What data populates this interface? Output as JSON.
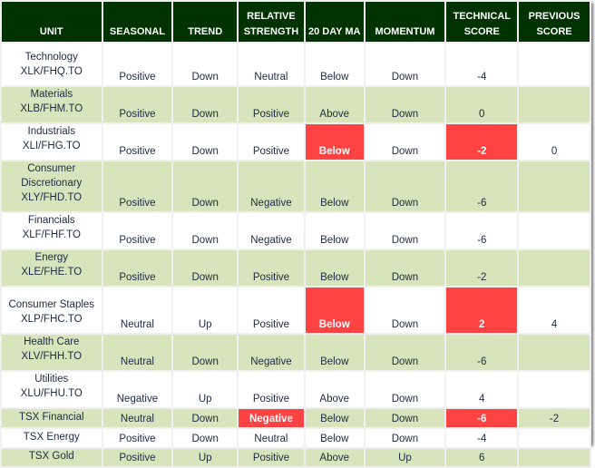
{
  "colors": {
    "header": "#003300",
    "band": "#d8e4bc",
    "alert": "#ff4343"
  },
  "headers": [
    "UNIT",
    "SEASONAL",
    "TREND",
    "RELATIVE STRENGTH",
    "20 DAY MA",
    "MOMENTUM",
    "TECHNICAL SCORE",
    "PREVIOUS SCORE"
  ],
  "rows": [
    {
      "unit": [
        "Technology",
        "XLK/FHQ.TO"
      ],
      "seasonal": "Positive",
      "trend": "Down",
      "relative_strength": "Neutral",
      "ma20": "Below",
      "momentum": "Down",
      "technical_score": "-4",
      "previous_score": "",
      "highlight": []
    },
    {
      "unit": [
        "Materials",
        "XLB/FHM.TO"
      ],
      "seasonal": "Positive",
      "trend": "Down",
      "relative_strength": "Positive",
      "ma20": "Above",
      "momentum": "Down",
      "technical_score": "0",
      "previous_score": "",
      "highlight": []
    },
    {
      "unit": [
        "Industrials",
        "XLI/FHG.TO"
      ],
      "seasonal": "Positive",
      "trend": "Down",
      "relative_strength": "Positive",
      "ma20": "Below",
      "momentum": "Down",
      "technical_score": "-2",
      "previous_score": "0",
      "highlight": [
        "ma20",
        "technical_score"
      ]
    },
    {
      "unit": [
        "Consumer",
        "Discretionary",
        "XLY/FHD.TO"
      ],
      "seasonal": "Positive",
      "trend": "Down",
      "relative_strength": "Negative",
      "ma20": "Below",
      "momentum": "Down",
      "technical_score": "-6",
      "previous_score": "",
      "highlight": []
    },
    {
      "unit": [
        "Financials",
        "XLF/FHF.TO"
      ],
      "seasonal": "Positive",
      "trend": "Down",
      "relative_strength": "Negative",
      "ma20": "Below",
      "momentum": "Down",
      "technical_score": "-6",
      "previous_score": "",
      "highlight": []
    },
    {
      "unit": [
        "Energy",
        "XLE/FHE.TO"
      ],
      "seasonal": "Positive",
      "trend": "Down",
      "relative_strength": "Positive",
      "ma20": "Below",
      "momentum": "Down",
      "technical_score": "-2",
      "previous_score": "",
      "highlight": []
    },
    {
      "unit": [
        "Consumer Staples",
        "XLP/FHC.TO"
      ],
      "seasonal": "Neutral",
      "trend": "Up",
      "relative_strength": "Positive",
      "ma20": "Below",
      "momentum": "Down",
      "technical_score": "2",
      "previous_score": "4",
      "highlight": [
        "ma20",
        "technical_score"
      ]
    },
    {
      "unit": [
        "Health Care",
        "XLV/FHH.TO"
      ],
      "seasonal": "Neutral",
      "trend": "Down",
      "relative_strength": "Negative",
      "ma20": "Below",
      "momentum": "Down",
      "technical_score": "-6",
      "previous_score": "",
      "highlight": []
    },
    {
      "unit": [
        "Utilities",
        "XLU/FHU.TO"
      ],
      "seasonal": "Negative",
      "trend": "Up",
      "relative_strength": "Positive",
      "ma20": "Above",
      "momentum": "Down",
      "technical_score": "4",
      "previous_score": "",
      "highlight": []
    },
    {
      "unit": [
        "TSX Financial"
      ],
      "seasonal": "Neutral",
      "trend": "Down",
      "relative_strength": "Negative",
      "ma20": "Below",
      "momentum": "Down",
      "technical_score": "-6",
      "previous_score": "-2",
      "highlight": [
        "relative_strength",
        "technical_score"
      ]
    },
    {
      "unit": [
        "TSX Energy"
      ],
      "seasonal": "Positive",
      "trend": "Down",
      "relative_strength": "Neutral",
      "ma20": "Below",
      "momentum": "Down",
      "technical_score": "-4",
      "previous_score": "",
      "highlight": []
    },
    {
      "unit": [
        "TSX Gold"
      ],
      "seasonal": "Positive",
      "trend": "Up",
      "relative_strength": "Positive",
      "ma20": "Above",
      "momentum": "Up",
      "technical_score": "6",
      "previous_score": "",
      "highlight": []
    }
  ]
}
